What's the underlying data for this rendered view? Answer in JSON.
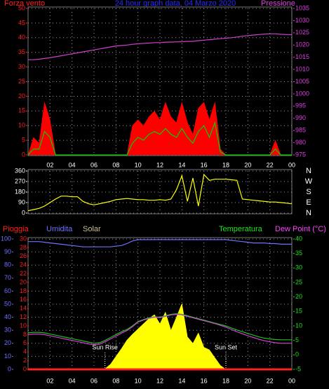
{
  "chart_data": [
    {
      "type": "line",
      "title": "24 hour graph data, 04 Marzo 2020",
      "y_label": "Forza vento",
      "y2_label": "Pressione",
      "x": [
        0,
        0.5,
        1,
        1.5,
        2,
        2.5,
        3,
        3.5,
        4,
        4.5,
        5,
        5.5,
        6,
        6.5,
        7,
        7.5,
        8,
        8.5,
        9,
        9.5,
        10,
        10.5,
        11,
        11.5,
        12,
        12.5,
        13,
        13.5,
        14,
        14.5,
        15,
        15.5,
        16,
        16.5,
        17,
        17.5,
        18,
        18.5,
        19,
        19.5,
        20,
        20.5,
        21,
        21.5,
        22,
        22.5,
        23,
        23.5,
        24
      ],
      "xlim": [
        0,
        24
      ],
      "xticks": [
        {
          "value": 2,
          "label": "02"
        },
        {
          "value": 4,
          "label": "04"
        },
        {
          "value": 6,
          "label": "06"
        },
        {
          "value": 8,
          "label": "08"
        },
        10,
        12,
        14,
        16,
        18,
        20,
        22,
        {
          "value": 24,
          "label": "00"
        }
      ],
      "ylim": [
        0,
        50
      ],
      "yticks": [
        0,
        5,
        10,
        15,
        20,
        25,
        30,
        35,
        40,
        45,
        50
      ],
      "y2lim": [
        975,
        1035
      ],
      "y2ticks": [
        975,
        980,
        985,
        990,
        995,
        1000,
        1005,
        1010,
        1015,
        1020,
        1025,
        1030,
        1035
      ],
      "grid": true,
      "series": [
        {
          "color": "#ff0000",
          "fill": true,
          "values": [
            0,
            6,
            4,
            18,
            12,
            0,
            0,
            0,
            0,
            0,
            0,
            0,
            0,
            0,
            0,
            0,
            0,
            0,
            0,
            10,
            12,
            10,
            13,
            15,
            12,
            18,
            13,
            11,
            18,
            11,
            7,
            16,
            18,
            12,
            18,
            2,
            0,
            0,
            0,
            0,
            0,
            0,
            0,
            0,
            0,
            5,
            0,
            0,
            0
          ]
        },
        {
          "color": "#00d000",
          "values": [
            0,
            2,
            2,
            8,
            6,
            0,
            0,
            0,
            0,
            0,
            0,
            0,
            0,
            0,
            0,
            0,
            0,
            0,
            0,
            4,
            6,
            5,
            7,
            8,
            7,
            9,
            7,
            6,
            9,
            6,
            4,
            8,
            10,
            6,
            11,
            1,
            0,
            0,
            0,
            0,
            0,
            0,
            0,
            0,
            0,
            2,
            0,
            0,
            0
          ]
        },
        {
          "color": "#d040d0",
          "axis": "y2",
          "values": [
            1014,
            1014,
            1014.2,
            1014.5,
            1014.8,
            1015.2,
            1015.6,
            1016,
            1016.4,
            1016.8,
            1017.2,
            1017.6,
            1018,
            1018.4,
            1018.8,
            1019.2,
            1019.6,
            1019.8,
            1020,
            1020.3,
            1020.5,
            1020.7,
            1020.8,
            1021,
            1021,
            1021.2,
            1021.2,
            1021.3,
            1021.3,
            1021.5,
            1021.5,
            1021.8,
            1022,
            1022.2,
            1022.4,
            1022.6,
            1022.8,
            1023,
            1023.3,
            1023.6,
            1023.9,
            1024.1,
            1024.3,
            1024.5,
            1024.6,
            1024.6,
            1024.4,
            1024.3,
            1024.2
          ]
        }
      ]
    },
    {
      "type": "line",
      "x": [
        0,
        0.5,
        1,
        1.5,
        2,
        2.5,
        3,
        3.5,
        4,
        4.5,
        5,
        5.5,
        6,
        6.5,
        7,
        7.5,
        8,
        8.5,
        9,
        9.5,
        10,
        10.5,
        11,
        11.5,
        12,
        12.5,
        13,
        13.5,
        14,
        14.5,
        15,
        15.5,
        16,
        16.5,
        17,
        17.5,
        18,
        18.5,
        19,
        19.5,
        20,
        20.5,
        21,
        21.5,
        22,
        22.5,
        23,
        23.5,
        24
      ],
      "xlim": [
        0,
        24
      ],
      "ylim": [
        0,
        360
      ],
      "yticks": [
        0,
        90,
        180,
        270,
        360
      ],
      "compass_labels": [
        "N",
        "E",
        "S",
        "W",
        "N"
      ],
      "grid": true,
      "series": [
        {
          "color": "#ffff00",
          "values": [
            20,
            30,
            40,
            60,
            90,
            120,
            145,
            145,
            140,
            140,
            100,
            80,
            70,
            80,
            90,
            100,
            115,
            120,
            125,
            120,
            115,
            115,
            110,
            110,
            115,
            110,
            120,
            200,
            320,
            100,
            300,
            60,
            330,
            280,
            290,
            290,
            290,
            285,
            280,
            120,
            115,
            110,
            105,
            100,
            95,
            95,
            90,
            85,
            80
          ]
        }
      ]
    },
    {
      "type": "line",
      "x": [
        0,
        0.5,
        1,
        1.5,
        2,
        2.5,
        3,
        3.5,
        4,
        4.5,
        5,
        5.5,
        6,
        6.5,
        7,
        7.5,
        8,
        8.5,
        9,
        9.5,
        10,
        10.5,
        11,
        11.5,
        12,
        12.5,
        13,
        13.5,
        14,
        14.5,
        15,
        15.5,
        16,
        16.5,
        17,
        17.5,
        18,
        18.5,
        19,
        19.5,
        20,
        20.5,
        21,
        21.5,
        22,
        22.5,
        23,
        23.5,
        24
      ],
      "xlim": [
        0,
        24
      ],
      "xticks": [
        {
          "value": 2,
          "label": "02"
        },
        {
          "value": 4,
          "label": "04"
        },
        {
          "value": 6,
          "label": "06"
        },
        {
          "value": 8,
          "label": "08"
        },
        10,
        12,
        14,
        16,
        18,
        20,
        22,
        {
          "value": 24,
          "label": "00"
        }
      ],
      "ylim": [
        0,
        30
      ],
      "yticks": [
        0,
        2,
        4,
        6,
        8,
        10,
        12,
        14,
        16,
        18,
        20,
        22,
        24,
        26,
        28,
        30
      ],
      "y3lim": [
        0,
        100
      ],
      "y3ticks": [
        0,
        10,
        20,
        30,
        40,
        50,
        60,
        70,
        80,
        90,
        100
      ],
      "y2lim": [
        -5,
        40
      ],
      "y2ticks": [
        -5,
        0,
        5,
        10,
        15,
        20,
        25,
        30,
        35,
        40
      ],
      "y4lim": [
        0,
        1000
      ],
      "grid": true,
      "annotations": [
        {
          "text": "Sun Rise",
          "x": 7
        },
        {
          "text": "Sun Set",
          "x": 18
        }
      ],
      "series": [
        {
          "name": "Pioggia",
          "color": "#ff2020",
          "values": [
            0,
            0,
            0,
            0,
            0,
            0,
            0,
            0,
            0,
            0,
            0,
            0,
            0,
            0,
            0,
            0,
            0,
            0,
            0,
            0,
            0,
            0,
            0,
            0,
            0,
            0,
            0,
            0,
            0,
            0,
            0,
            0,
            0,
            0,
            0,
            0,
            0,
            0,
            0,
            0,
            0,
            0,
            0,
            0,
            0,
            0,
            0,
            0,
            0
          ]
        },
        {
          "name": "Umidita",
          "color": "#7070ff",
          "axis": "y3",
          "values": [
            98,
            98,
            98,
            97.5,
            97,
            96.5,
            96,
            95.5,
            95,
            94.5,
            94,
            94,
            94,
            94,
            94,
            94,
            94.5,
            95,
            96.5,
            98.5,
            99.5,
            99.5,
            99.5,
            99.5,
            99.5,
            99.5,
            99.5,
            99.5,
            99.5,
            99.5,
            99.5,
            99.5,
            99.5,
            99.5,
            99.5,
            99.5,
            99.5,
            99,
            98.5,
            98,
            97.5,
            97,
            97,
            97,
            96.5,
            96.5,
            96,
            96,
            96
          ]
        },
        {
          "name": "Solar",
          "color": "#ffff00",
          "axis": "y4",
          "fill": true,
          "values": [
            0,
            0,
            0,
            0,
            0,
            0,
            0,
            0,
            0,
            0,
            0,
            0,
            0,
            0,
            5,
            40,
            100,
            160,
            225,
            270,
            310,
            350,
            390,
            420,
            350,
            440,
            300,
            400,
            505,
            250,
            200,
            280,
            170,
            150,
            90,
            30,
            0,
            0,
            0,
            0,
            0,
            0,
            0,
            0,
            0,
            0,
            0,
            0,
            0
          ]
        },
        {
          "name": "Temperatura",
          "color": "#20c020",
          "axis": "y2",
          "values": [
            7.6,
            7.8,
            7.8,
            7.6,
            7.2,
            6.8,
            6.4,
            6,
            5.6,
            5.2,
            4.8,
            4.4,
            4,
            4.2,
            5,
            6,
            7,
            8,
            8.8,
            10,
            11.5,
            12.2,
            12.8,
            13.2,
            13,
            13.5,
            14,
            14.2,
            14,
            13.5,
            13,
            12.5,
            12,
            11.5,
            11,
            10.5,
            10,
            9.3,
            8.6,
            8,
            7.4,
            6.8,
            6.2,
            5.8,
            5.5,
            5.3,
            5.2,
            5.2,
            5.2
          ]
        },
        {
          "name": "Dew Point (°C)",
          "color": "#d040d0",
          "axis": "y2",
          "values": [
            7,
            7.2,
            7.2,
            7,
            6.6,
            6.2,
            5.8,
            5.4,
            5,
            4.6,
            4.2,
            3.8,
            3.5,
            3.7,
            4.5,
            5.5,
            6.5,
            7.5,
            8.4,
            9.7,
            11.3,
            12,
            12.6,
            13,
            12.8,
            13.3,
            13.8,
            14,
            13.8,
            13.3,
            12.8,
            12.3,
            11.8,
            11.3,
            10.8,
            10.2,
            9.6,
            8.8,
            8,
            7.3,
            6.6,
            6,
            5.4,
            4.9,
            4.5,
            4.2,
            4,
            4,
            4
          ]
        }
      ]
    }
  ]
}
